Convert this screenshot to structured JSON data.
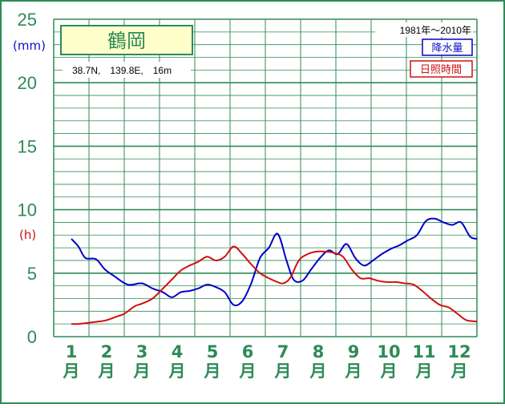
{
  "station": {
    "name": "鶴岡",
    "location": "38.7N,　139.8E,　16m"
  },
  "period": "1981年〜2010年",
  "units": {
    "precip_label": "(mm)",
    "sun_label": "(h)"
  },
  "colors": {
    "frame": "#2e8b57",
    "grid": "#2e8b57",
    "precipitation": "#0000c8",
    "sunshine": "#d01010",
    "title_bg": "#ffffcc"
  },
  "chart_data": {
    "type": "line",
    "categories": [
      "1月",
      "2月",
      "3月",
      "4月",
      "5月",
      "6月",
      "7月",
      "8月",
      "9月",
      "10月",
      "11月",
      "12月"
    ],
    "x_tick_labels": [
      {
        "num": "1",
        "unit": "月"
      },
      {
        "num": "2",
        "unit": "月"
      },
      {
        "num": "3",
        "unit": "月"
      },
      {
        "num": "4",
        "unit": "月"
      },
      {
        "num": "5",
        "unit": "月"
      },
      {
        "num": "6",
        "unit": "月"
      },
      {
        "num": "7",
        "unit": "月"
      },
      {
        "num": "8",
        "unit": "月"
      },
      {
        "num": "9",
        "unit": "月"
      },
      {
        "num": "10",
        "unit": "月"
      },
      {
        "num": "11",
        "unit": "月"
      },
      {
        "num": "12",
        "unit": "月"
      }
    ],
    "y_ticks": [
      "0",
      "5",
      "10",
      "15",
      "20",
      "25"
    ],
    "ylim": [
      0,
      25
    ],
    "grid": true,
    "legend_position": "top-right",
    "series": [
      {
        "name": "降水量",
        "color": "#0000c8",
        "x": [
          1.0,
          1.2,
          1.4,
          1.7,
          1.95,
          2.2,
          2.6,
          3.0,
          3.3,
          3.6,
          3.85,
          4.1,
          4.35,
          4.6,
          4.85,
          5.1,
          5.35,
          5.6,
          5.85,
          6.1,
          6.35,
          6.6,
          6.85,
          7.1,
          7.3,
          7.55,
          7.8,
          8.05,
          8.3,
          8.55,
          8.8,
          9.05,
          9.3,
          9.55,
          9.8,
          10.05,
          10.3,
          10.55,
          10.8,
          11.05,
          11.3,
          11.55,
          11.8,
          12.05,
          12.3,
          12.5
        ],
        "values": [
          7.7,
          7.1,
          6.2,
          6.1,
          5.3,
          4.8,
          4.1,
          4.2,
          3.8,
          3.5,
          3.1,
          3.5,
          3.6,
          3.8,
          4.1,
          3.9,
          3.5,
          2.5,
          2.8,
          4.2,
          6.2,
          7.0,
          8.1,
          6.0,
          4.5,
          4.4,
          5.3,
          6.2,
          6.8,
          6.5,
          7.3,
          6.2,
          5.6,
          6.0,
          6.5,
          6.9,
          7.2,
          7.6,
          8.0,
          9.1,
          9.3,
          9.0,
          8.8,
          9.0,
          7.9,
          7.7
        ]
      },
      {
        "name": "日照時間",
        "color": "#d01010",
        "x": [
          1.0,
          1.2,
          1.5,
          1.8,
          2.0,
          2.3,
          2.5,
          2.8,
          3.0,
          3.3,
          3.6,
          3.85,
          4.1,
          4.35,
          4.6,
          4.85,
          5.1,
          5.35,
          5.6,
          5.85,
          6.1,
          6.35,
          6.6,
          6.85,
          7.0,
          7.2,
          7.45,
          7.7,
          7.95,
          8.2,
          8.45,
          8.7,
          8.95,
          9.2,
          9.45,
          9.7,
          9.95,
          10.2,
          10.45,
          10.7,
          10.95,
          11.2,
          11.45,
          11.7,
          11.95,
          12.2,
          12.5
        ],
        "values": [
          1.0,
          1.0,
          1.1,
          1.2,
          1.3,
          1.6,
          1.8,
          2.4,
          2.6,
          3.0,
          3.8,
          4.5,
          5.2,
          5.6,
          5.9,
          6.3,
          6.0,
          6.3,
          7.1,
          6.5,
          5.7,
          5.0,
          4.6,
          4.3,
          4.2,
          4.6,
          6.0,
          6.5,
          6.7,
          6.7,
          6.6,
          6.3,
          5.3,
          4.6,
          4.6,
          4.4,
          4.3,
          4.3,
          4.2,
          4.1,
          3.6,
          3.0,
          2.5,
          2.3,
          1.8,
          1.3,
          1.2
        ]
      }
    ]
  }
}
